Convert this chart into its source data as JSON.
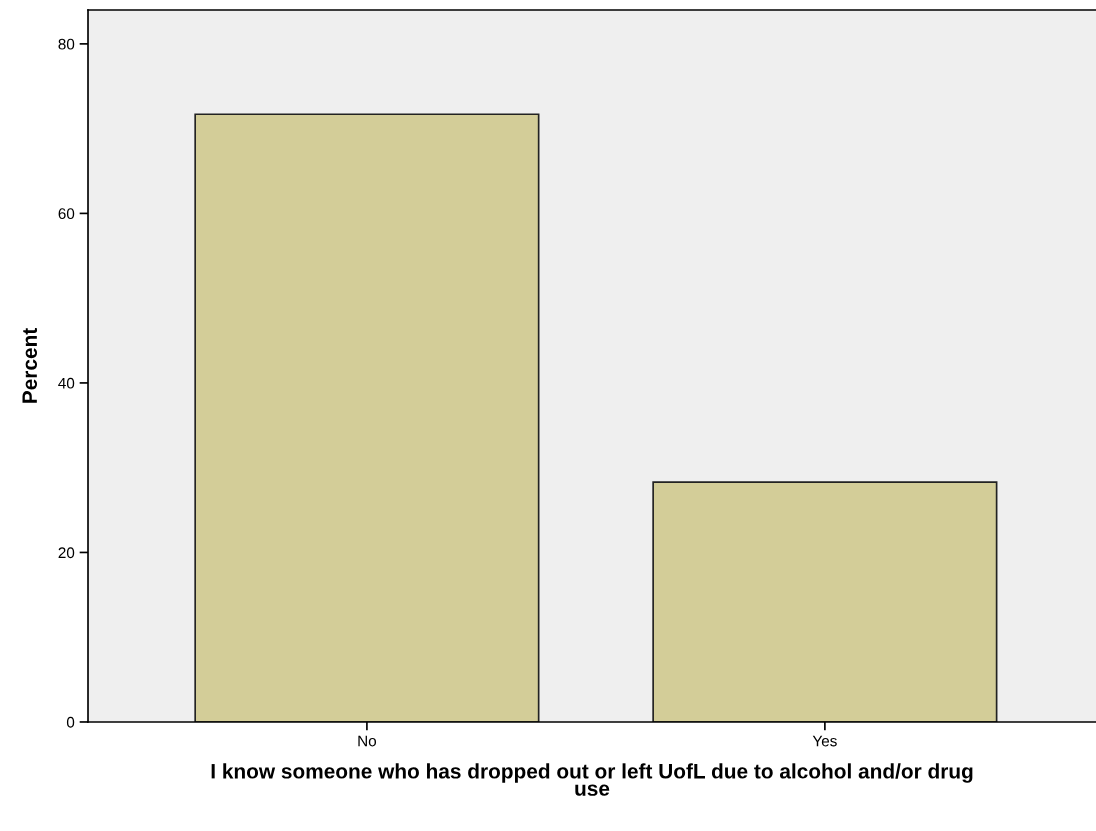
{
  "chart_data": {
    "type": "bar",
    "xlabel": "I know someone who has dropped out or left UofL due to alcohol and/or drug\nuse",
    "ylabel": "Percent",
    "categories": [
      "No",
      "Yes"
    ],
    "values": [
      71.7,
      28.3
    ],
    "color": "#d3cd98",
    "ylim": [
      0,
      84
    ],
    "yticks": [
      0,
      20,
      40,
      60,
      80
    ],
    "grid": false,
    "legend": false
  }
}
